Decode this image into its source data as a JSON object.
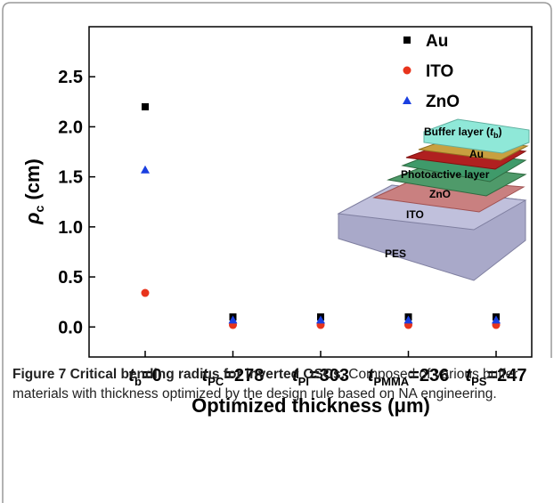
{
  "chart_data": {
    "type": "scatter",
    "categories": [
      [
        "t",
        "b",
        "=0"
      ],
      [
        "t",
        "PC",
        "=278"
      ],
      [
        "t",
        "PI",
        "=303"
      ],
      [
        "t",
        "PMMA",
        "=236"
      ],
      [
        "t",
        "PS",
        "=247"
      ]
    ],
    "x_label": "Optimized thickness (μm)",
    "y_label": [
      "ρ",
      "c",
      " (cm)"
    ],
    "series": [
      {
        "name": "Au",
        "color": "#000000",
        "marker": "square",
        "values": [
          2.2,
          0.1,
          0.1,
          0.1,
          0.1
        ]
      },
      {
        "name": "ITO",
        "color": "#e8341c",
        "marker": "circle",
        "values": [
          0.34,
          0.02,
          0.02,
          0.02,
          0.02
        ]
      },
      {
        "name": "ZnO",
        "color": "#1a3fe0",
        "marker": "triangle",
        "values": [
          1.57,
          0.07,
          0.07,
          0.07,
          0.07
        ]
      }
    ],
    "ylim": [
      -0.3,
      3.0
    ],
    "yticks": [
      {
        "value": 0,
        "label": "0.0"
      },
      0.5,
      {
        "value": 1,
        "label": "1.0"
      },
      1.5,
      {
        "value": 2,
        "label": "2.0"
      },
      2.5
    ],
    "legend": "upper right"
  },
  "inset": {
    "labels": [
      [
        "Buffer layer (",
        "t",
        "b",
        ")"
      ],
      [
        "Au"
      ],
      [
        "Photoactive layer"
      ],
      [
        "ZnO"
      ],
      [
        "ITO"
      ],
      [
        "PES"
      ]
    ]
  },
  "caption": {
    "title": "Figure 7 Critical bending radius for inverted OSCs.",
    "text": "Composed of various buffer materials with thickness optimized by the design rule based on NA engineering."
  }
}
